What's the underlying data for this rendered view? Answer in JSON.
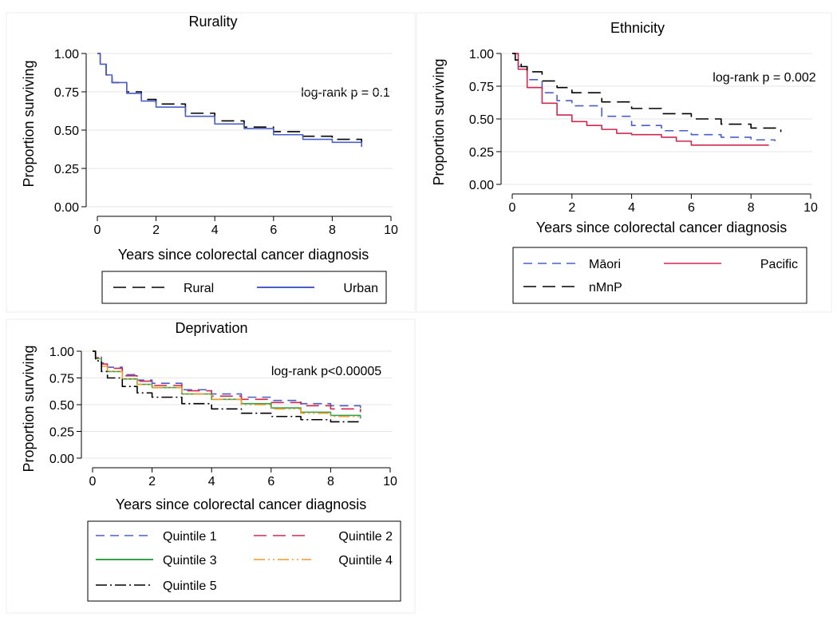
{
  "chart_data": [
    {
      "type": "line",
      "title": "Rurality",
      "xlabel": "Years since colorectal cancer diagnosis",
      "ylabel": "Proportion surviving",
      "xlim": [
        0,
        10
      ],
      "ylim": [
        0,
        1
      ],
      "xticks": [
        0,
        2,
        4,
        6,
        8,
        10
      ],
      "yticks": [
        0.0,
        0.25,
        0.5,
        0.75,
        1.0
      ],
      "grid": true,
      "legend_position": "bottom",
      "annotation": "log-rank p = 0.1",
      "series": [
        {
          "name": "Rural",
          "color": "#000000",
          "dash": "long-dash",
          "x": [
            0,
            0.1,
            0.3,
            0.5,
            1.0,
            1.5,
            2,
            3,
            4,
            5,
            6,
            7,
            8,
            9
          ],
          "y": [
            1.0,
            0.93,
            0.86,
            0.81,
            0.75,
            0.7,
            0.67,
            0.61,
            0.56,
            0.52,
            0.49,
            0.46,
            0.44,
            0.42
          ]
        },
        {
          "name": "Urban",
          "color": "#4b5ec8",
          "dash": "solid",
          "x": [
            0,
            0.1,
            0.3,
            0.5,
            1.0,
            1.5,
            2,
            3,
            4,
            5,
            6,
            7,
            8,
            9
          ],
          "y": [
            1.0,
            0.93,
            0.86,
            0.81,
            0.74,
            0.69,
            0.65,
            0.59,
            0.54,
            0.51,
            0.47,
            0.44,
            0.42,
            0.39
          ]
        }
      ]
    },
    {
      "type": "line",
      "title": "Ethnicity",
      "xlabel": "Years since colorectal cancer diagnosis",
      "ylabel": "Proportion surviving",
      "xlim": [
        0,
        10
      ],
      "ylim": [
        0,
        1
      ],
      "xticks": [
        0,
        2,
        4,
        6,
        8,
        10
      ],
      "yticks": [
        0.0,
        0.25,
        0.5,
        0.75,
        1.0
      ],
      "grid": true,
      "legend_position": "bottom",
      "annotation": "log-rank p = 0.002",
      "series": [
        {
          "name": "Māori",
          "color": "#4b5ec8",
          "dash": "short-dash",
          "x": [
            0,
            0.2,
            0.5,
            1.0,
            1.5,
            2,
            3,
            4,
            5,
            6,
            7,
            8,
            8.8
          ],
          "y": [
            1.0,
            0.9,
            0.8,
            0.7,
            0.64,
            0.6,
            0.52,
            0.45,
            0.41,
            0.38,
            0.36,
            0.34,
            0.33
          ]
        },
        {
          "name": "Pacific",
          "color": "#d0284e",
          "dash": "solid",
          "x": [
            0,
            0.2,
            0.5,
            1.0,
            1.5,
            2,
            2.5,
            3,
            3.5,
            4,
            5,
            5.5,
            6,
            7,
            8,
            8.6
          ],
          "y": [
            1.0,
            0.88,
            0.74,
            0.62,
            0.53,
            0.48,
            0.45,
            0.42,
            0.39,
            0.38,
            0.36,
            0.33,
            0.3,
            0.3,
            0.3,
            0.3
          ]
        },
        {
          "name": "nMnP",
          "color": "#000000",
          "dash": "long-dash",
          "x": [
            0,
            0.1,
            0.3,
            0.5,
            1.0,
            1.5,
            2,
            3,
            4,
            5,
            6,
            7,
            8,
            9
          ],
          "y": [
            1.0,
            0.95,
            0.9,
            0.86,
            0.79,
            0.74,
            0.7,
            0.63,
            0.58,
            0.54,
            0.5,
            0.46,
            0.43,
            0.4
          ]
        }
      ]
    },
    {
      "type": "line",
      "title": "Deprivation",
      "xlabel": "Years since colorectal cancer diagnosis",
      "ylabel": "Proportion surviving",
      "xlim": [
        0,
        10
      ],
      "ylim": [
        0,
        1
      ],
      "xticks": [
        0,
        2,
        4,
        6,
        8,
        10
      ],
      "yticks": [
        0.0,
        0.25,
        0.5,
        0.75,
        1.0
      ],
      "grid": true,
      "legend_position": "bottom",
      "annotation": "log-rank p<0.00005",
      "series": [
        {
          "name": "Quintile 1",
          "color": "#4b5ec8",
          "dash": "short-dash",
          "x": [
            0,
            0.1,
            0.3,
            0.5,
            1.0,
            1.5,
            2,
            3,
            4,
            5,
            6,
            7,
            8,
            9
          ],
          "y": [
            1.0,
            0.95,
            0.89,
            0.85,
            0.78,
            0.73,
            0.7,
            0.64,
            0.6,
            0.57,
            0.54,
            0.51,
            0.49,
            0.47
          ]
        },
        {
          "name": "Quintile 2",
          "color": "#d0284e",
          "dash": "long-dash",
          "x": [
            0,
            0.1,
            0.3,
            0.5,
            1.0,
            1.5,
            2,
            3,
            4,
            5,
            6,
            7,
            8,
            9
          ],
          "y": [
            1.0,
            0.94,
            0.88,
            0.84,
            0.77,
            0.72,
            0.68,
            0.63,
            0.58,
            0.55,
            0.52,
            0.49,
            0.46,
            0.43
          ]
        },
        {
          "name": "Quintile 3",
          "color": "#2fa34a",
          "dash": "solid",
          "x": [
            0,
            0.1,
            0.3,
            0.5,
            1.0,
            1.5,
            2,
            3,
            4,
            5,
            6,
            7,
            8,
            9
          ],
          "y": [
            1.0,
            0.93,
            0.86,
            0.81,
            0.74,
            0.69,
            0.66,
            0.6,
            0.55,
            0.51,
            0.47,
            0.43,
            0.4,
            0.37
          ]
        },
        {
          "name": "Quintile 4",
          "color": "#f39a2a",
          "dash": "dash-dot-dot",
          "x": [
            0,
            0.1,
            0.3,
            0.5,
            1.0,
            1.5,
            2,
            3,
            4,
            5,
            6,
            7,
            8,
            9
          ],
          "y": [
            1.0,
            0.93,
            0.86,
            0.81,
            0.74,
            0.69,
            0.66,
            0.6,
            0.55,
            0.5,
            0.46,
            0.42,
            0.39,
            0.37
          ]
        },
        {
          "name": "Quintile 5",
          "color": "#000000",
          "dash": "dash-dot",
          "x": [
            0,
            0.1,
            0.3,
            0.5,
            1.0,
            1.5,
            2,
            3,
            4,
            5,
            6,
            7,
            8,
            9
          ],
          "y": [
            1.0,
            0.91,
            0.81,
            0.75,
            0.67,
            0.61,
            0.57,
            0.51,
            0.46,
            0.42,
            0.39,
            0.36,
            0.34,
            0.33
          ]
        }
      ]
    }
  ]
}
